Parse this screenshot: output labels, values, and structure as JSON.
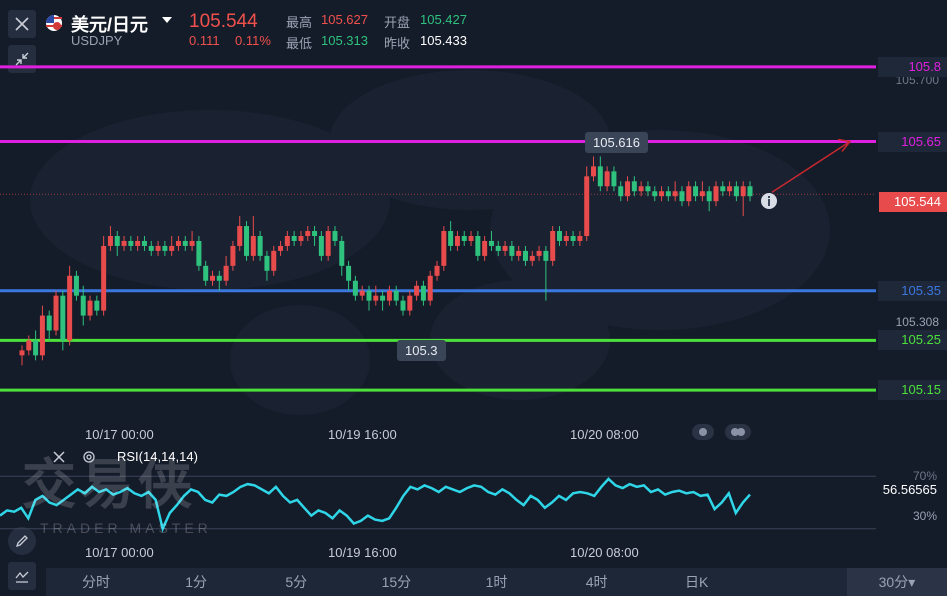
{
  "header": {
    "flag_icon": "us-jp-flag-icon",
    "pair_name": "美元/日元",
    "pair_code": "USDJPY",
    "last_price": "105.544",
    "change": "0.111",
    "change_pct": "0.11%",
    "high_label": "最高",
    "high_value": "105.627",
    "low_label": "最低",
    "low_value": "105.313",
    "open_label": "开盘",
    "open_value": "105.427",
    "prev_close_label": "昨收",
    "prev_close_value": "105.433"
  },
  "price_axis": {
    "top_gray": "105.700",
    "bottom_gray": "105.308",
    "current": "105.544"
  },
  "levels": [
    {
      "name": "level-105-8",
      "label": "105.8",
      "value": 105.8,
      "color": "#e020e0"
    },
    {
      "name": "level-105-65",
      "label": "105.65",
      "value": 105.65,
      "color": "#e020e0"
    },
    {
      "name": "level-105-35",
      "label": "105.35",
      "value": 105.35,
      "color": "#3a78e0"
    },
    {
      "name": "level-105-25",
      "label": "105.25",
      "value": 105.25,
      "color": "#4ce03a"
    },
    {
      "name": "level-105-15",
      "label": "105.15",
      "value": 105.15,
      "color": "#4ce03a"
    }
  ],
  "annotations": {
    "high_marker": "105.616",
    "low_marker": "105.3"
  },
  "time_labels": [
    "10/17 00:00",
    "10/19 16:00",
    "10/20 08:00"
  ],
  "indicator": {
    "name": "RSI(14,14,14)",
    "value": "56.56565",
    "level_70": "70%",
    "level_30": "30%"
  },
  "watermark": {
    "brand": "交易侠",
    "sub": "TRADER MASTER"
  },
  "tabs": [
    "分时",
    "1分",
    "5分",
    "15分",
    "1时",
    "4时",
    "日K",
    "",
    "30分"
  ],
  "tab_dropdown_suffix": "▾",
  "colors": {
    "up": "#e84b4b",
    "down": "#2ec27e",
    "rsi": "#2fd6e8",
    "bg": "#141b29"
  },
  "chart_data": {
    "type": "candlestick",
    "symbol": "USDJPY",
    "timeframe": "30分",
    "ylim": [
      105.09,
      105.83
    ],
    "x_ticks": [
      "10/17 00:00",
      "10/19 16:00",
      "10/20 08:00"
    ],
    "horizontal_levels": [
      105.8,
      105.65,
      105.35,
      105.25,
      105.15
    ],
    "last": 105.544,
    "high_annotation": 105.616,
    "low_annotation": 105.3,
    "candles": [
      [
        105.22,
        105.23,
        105.2,
        105.24
      ],
      [
        105.23,
        105.25,
        105.22,
        105.26
      ],
      [
        105.25,
        105.22,
        105.21,
        105.27
      ],
      [
        105.22,
        105.3,
        105.21,
        105.32
      ],
      [
        105.3,
        105.27,
        105.25,
        105.31
      ],
      [
        105.27,
        105.34,
        105.26,
        105.35
      ],
      [
        105.34,
        105.25,
        105.23,
        105.35
      ],
      [
        105.25,
        105.38,
        105.24,
        105.4
      ],
      [
        105.38,
        105.34,
        105.33,
        105.39
      ],
      [
        105.34,
        105.3,
        105.28,
        105.36
      ],
      [
        105.3,
        105.33,
        105.29,
        105.34
      ],
      [
        105.33,
        105.31,
        105.3,
        105.34
      ],
      [
        105.31,
        105.44,
        105.3,
        105.46
      ],
      [
        105.44,
        105.46,
        105.43,
        105.48
      ],
      [
        105.46,
        105.44,
        105.42,
        105.47
      ],
      [
        105.44,
        105.45,
        105.43,
        105.46
      ],
      [
        105.45,
        105.44,
        105.43,
        105.46
      ],
      [
        105.44,
        105.45,
        105.43,
        105.46
      ],
      [
        105.45,
        105.44,
        105.43,
        105.46
      ],
      [
        105.44,
        105.43,
        105.42,
        105.45
      ],
      [
        105.43,
        105.44,
        105.42,
        105.45
      ],
      [
        105.44,
        105.43,
        105.42,
        105.45
      ],
      [
        105.43,
        105.44,
        105.42,
        105.46
      ],
      [
        105.44,
        105.45,
        105.43,
        105.46
      ],
      [
        105.45,
        105.44,
        105.43,
        105.46
      ],
      [
        105.44,
        105.45,
        105.43,
        105.47
      ],
      [
        105.45,
        105.4,
        105.39,
        105.46
      ],
      [
        105.4,
        105.37,
        105.36,
        105.41
      ],
      [
        105.37,
        105.38,
        105.36,
        105.39
      ],
      [
        105.38,
        105.37,
        105.35,
        105.39
      ],
      [
        105.37,
        105.4,
        105.36,
        105.42
      ],
      [
        105.4,
        105.44,
        105.39,
        105.45
      ],
      [
        105.44,
        105.48,
        105.43,
        105.5
      ],
      [
        105.48,
        105.42,
        105.41,
        105.49
      ],
      [
        105.42,
        105.46,
        105.41,
        105.5
      ],
      [
        105.46,
        105.42,
        105.41,
        105.47
      ],
      [
        105.42,
        105.39,
        105.37,
        105.43
      ],
      [
        105.39,
        105.43,
        105.38,
        105.44
      ],
      [
        105.43,
        105.44,
        105.42,
        105.45
      ],
      [
        105.44,
        105.46,
        105.43,
        105.47
      ],
      [
        105.46,
        105.45,
        105.44,
        105.47
      ],
      [
        105.45,
        105.46,
        105.44,
        105.47
      ],
      [
        105.46,
        105.47,
        105.45,
        105.48
      ],
      [
        105.47,
        105.46,
        105.44,
        105.48
      ],
      [
        105.46,
        105.42,
        105.41,
        105.47
      ],
      [
        105.42,
        105.47,
        105.41,
        105.48
      ],
      [
        105.47,
        105.45,
        105.44,
        105.48
      ],
      [
        105.45,
        105.4,
        105.38,
        105.46
      ],
      [
        105.4,
        105.37,
        105.35,
        105.41
      ],
      [
        105.37,
        105.34,
        105.33,
        105.38
      ],
      [
        105.34,
        105.35,
        105.33,
        105.36
      ],
      [
        105.35,
        105.33,
        105.31,
        105.36
      ],
      [
        105.33,
        105.34,
        105.32,
        105.36
      ],
      [
        105.34,
        105.33,
        105.31,
        105.35
      ],
      [
        105.33,
        105.35,
        105.32,
        105.36
      ],
      [
        105.35,
        105.33,
        105.32,
        105.36
      ],
      [
        105.33,
        105.31,
        105.3,
        105.34
      ],
      [
        105.31,
        105.34,
        105.3,
        105.35
      ],
      [
        105.34,
        105.36,
        105.33,
        105.37
      ],
      [
        105.36,
        105.33,
        105.32,
        105.37
      ],
      [
        105.33,
        105.38,
        105.32,
        105.39
      ],
      [
        105.38,
        105.4,
        105.37,
        105.41
      ],
      [
        105.4,
        105.47,
        105.39,
        105.48
      ],
      [
        105.47,
        105.44,
        105.43,
        105.49
      ],
      [
        105.44,
        105.46,
        105.43,
        105.47
      ],
      [
        105.46,
        105.45,
        105.44,
        105.47
      ],
      [
        105.45,
        105.46,
        105.44,
        105.47
      ],
      [
        105.46,
        105.42,
        105.41,
        105.47
      ],
      [
        105.42,
        105.45,
        105.41,
        105.46
      ],
      [
        105.45,
        105.44,
        105.43,
        105.47
      ],
      [
        105.44,
        105.43,
        105.42,
        105.45
      ],
      [
        105.43,
        105.44,
        105.42,
        105.45
      ],
      [
        105.44,
        105.42,
        105.41,
        105.45
      ],
      [
        105.42,
        105.43,
        105.41,
        105.44
      ],
      [
        105.43,
        105.41,
        105.4,
        105.44
      ],
      [
        105.41,
        105.42,
        105.4,
        105.43
      ],
      [
        105.42,
        105.43,
        105.41,
        105.44
      ],
      [
        105.43,
        105.41,
        105.33,
        105.44
      ],
      [
        105.41,
        105.47,
        105.4,
        105.48
      ],
      [
        105.47,
        105.45,
        105.44,
        105.48
      ],
      [
        105.45,
        105.46,
        105.44,
        105.47
      ],
      [
        105.46,
        105.45,
        105.44,
        105.47
      ],
      [
        105.45,
        105.46,
        105.44,
        105.47
      ],
      [
        105.46,
        105.58,
        105.45,
        105.6
      ],
      [
        105.58,
        105.6,
        105.57,
        105.62
      ],
      [
        105.6,
        105.56,
        105.55,
        105.62
      ],
      [
        105.56,
        105.59,
        105.55,
        105.6
      ],
      [
        105.59,
        105.56,
        105.55,
        105.6
      ],
      [
        105.56,
        105.54,
        105.53,
        105.57
      ],
      [
        105.54,
        105.57,
        105.53,
        105.58
      ],
      [
        105.57,
        105.55,
        105.54,
        105.58
      ],
      [
        105.55,
        105.56,
        105.54,
        105.57
      ],
      [
        105.56,
        105.55,
        105.54,
        105.57
      ],
      [
        105.55,
        105.54,
        105.53,
        105.56
      ],
      [
        105.54,
        105.55,
        105.53,
        105.56
      ],
      [
        105.55,
        105.54,
        105.53,
        105.56
      ],
      [
        105.54,
        105.55,
        105.53,
        105.57
      ],
      [
        105.55,
        105.53,
        105.52,
        105.56
      ],
      [
        105.53,
        105.56,
        105.52,
        105.57
      ],
      [
        105.56,
        105.54,
        105.53,
        105.57
      ],
      [
        105.54,
        105.55,
        105.53,
        105.57
      ],
      [
        105.55,
        105.53,
        105.51,
        105.56
      ],
      [
        105.53,
        105.56,
        105.52,
        105.57
      ],
      [
        105.56,
        105.55,
        105.54,
        105.57
      ],
      [
        105.55,
        105.56,
        105.54,
        105.57
      ],
      [
        105.56,
        105.54,
        105.53,
        105.57
      ],
      [
        105.54,
        105.56,
        105.5,
        105.57
      ],
      [
        105.56,
        105.54,
        105.53,
        105.57
      ]
    ],
    "rsi": {
      "name": "RSI(14,14,14)",
      "last": 56.56565,
      "levels": [
        70,
        30
      ],
      "values": [
        40,
        44,
        43,
        46,
        38,
        52,
        55,
        50,
        48,
        52,
        56,
        60,
        57,
        62,
        58,
        60,
        56,
        58,
        61,
        57,
        55,
        58,
        52,
        30,
        42,
        48,
        55,
        60,
        58,
        52,
        50,
        56,
        55,
        58,
        62,
        64,
        63,
        60,
        57,
        62,
        55,
        50,
        52,
        46,
        40,
        44,
        42,
        38,
        44,
        40,
        34,
        36,
        40,
        37,
        36,
        38,
        46,
        55,
        62,
        60,
        63,
        61,
        58,
        62,
        60,
        58,
        61,
        63,
        62,
        58,
        56,
        60,
        57,
        52,
        48,
        55,
        52,
        46,
        50,
        55,
        52,
        57,
        58,
        57,
        55,
        62,
        68,
        63,
        61,
        64,
        62,
        63,
        58,
        60,
        56,
        58,
        59,
        57,
        58,
        55,
        56,
        45,
        50,
        57,
        42,
        50,
        56
      ]
    }
  }
}
